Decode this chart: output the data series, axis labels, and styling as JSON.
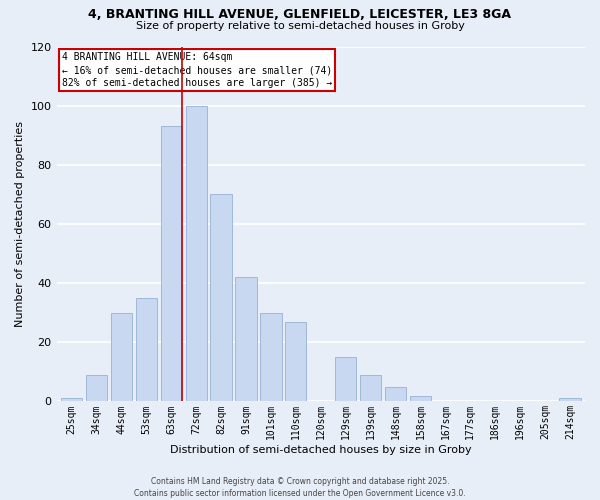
{
  "title_line1": "4, BRANTING HILL AVENUE, GLENFIELD, LEICESTER, LE3 8GA",
  "title_line2": "Size of property relative to semi-detached houses in Groby",
  "xlabel": "Distribution of semi-detached houses by size in Groby",
  "ylabel": "Number of semi-detached properties",
  "bins": [
    "25sqm",
    "34sqm",
    "44sqm",
    "53sqm",
    "63sqm",
    "72sqm",
    "82sqm",
    "91sqm",
    "101sqm",
    "110sqm",
    "120sqm",
    "129sqm",
    "139sqm",
    "148sqm",
    "158sqm",
    "167sqm",
    "177sqm",
    "186sqm",
    "196sqm",
    "205sqm",
    "214sqm"
  ],
  "values": [
    1,
    9,
    30,
    35,
    93,
    100,
    70,
    42,
    30,
    27,
    0,
    15,
    9,
    5,
    2,
    0,
    0,
    0,
    0,
    0,
    1
  ],
  "bar_color": "#c8d8f0",
  "bar_edge_color": "#a0b8d8",
  "vline_x_index": 4,
  "vline_color": "#cc0000",
  "ylim": [
    0,
    120
  ],
  "yticks": [
    0,
    20,
    40,
    60,
    80,
    100,
    120
  ],
  "annotation_line1": "4 BRANTING HILL AVENUE: 64sqm",
  "annotation_line2": "← 16% of semi-detached houses are smaller (74)",
  "annotation_line3": "82% of semi-detached houses are larger (385) →",
  "annotation_box_color": "#ffffff",
  "annotation_box_edge": "#cc0000",
  "footer_line1": "Contains HM Land Registry data © Crown copyright and database right 2025.",
  "footer_line2": "Contains public sector information licensed under the Open Government Licence v3.0.",
  "bg_color": "#e8eef8",
  "grid_color": "#ffffff"
}
